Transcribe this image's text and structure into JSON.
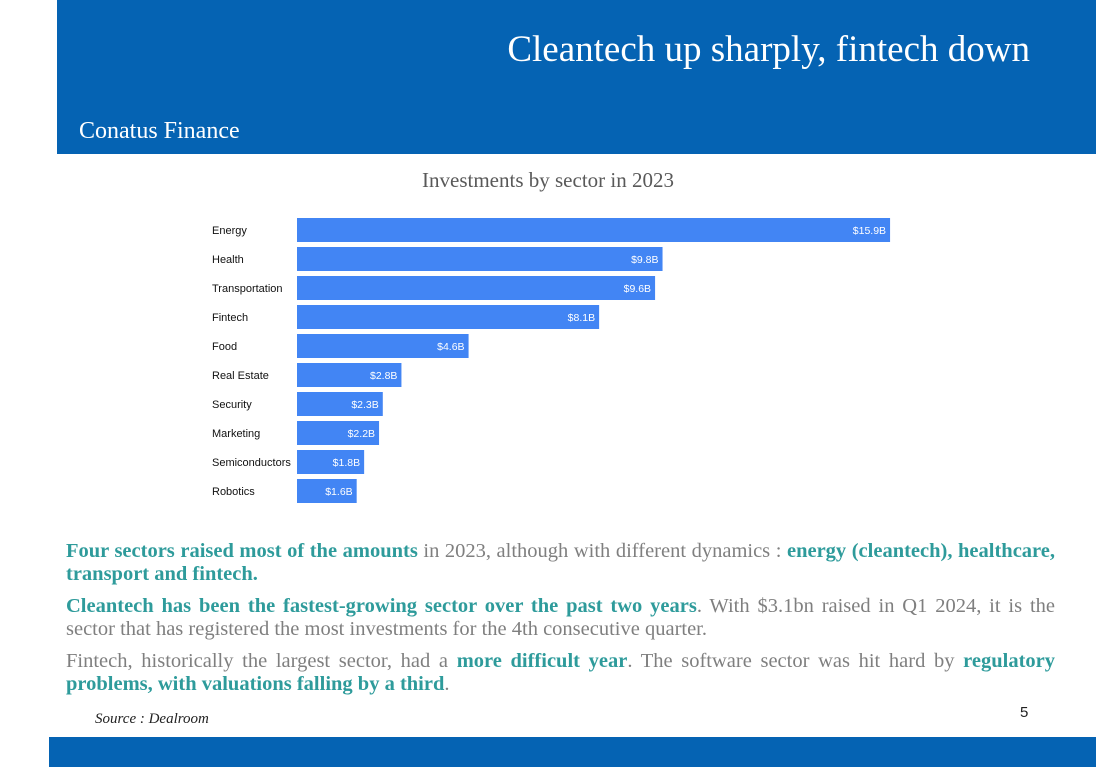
{
  "header": {
    "title": "Cleantech up sharply, fintech down",
    "company": "Conatus Finance",
    "color": "#0563b3"
  },
  "chart_data": {
    "type": "bar",
    "orientation": "horizontal",
    "title": "Investments by sector in 2023",
    "categories": [
      "Energy",
      "Health",
      "Transportation",
      "Fintech",
      "Food",
      "Real Estate",
      "Security",
      "Marketing",
      "Semiconductors",
      "Robotics"
    ],
    "values": [
      15.9,
      9.8,
      9.6,
      8.1,
      4.6,
      2.8,
      2.3,
      2.2,
      1.8,
      1.6
    ],
    "value_labels": [
      "$15.9B",
      "$9.8B",
      "$9.6B",
      "$8.1B",
      "$4.6B",
      "$2.8B",
      "$2.3B",
      "$2.2B",
      "$1.8B",
      "$1.6B"
    ],
    "unit": "$B",
    "bar_color": "#4285f4",
    "grid": false,
    "legend": "none"
  },
  "body": {
    "p1": [
      {
        "text": "Four sectors raised most of the amounts",
        "hl": true
      },
      {
        "text": " in 2023, although with different dynamics : ",
        "hl": false
      },
      {
        "text": "energy (cleantech), healthcare, transport and fintech.",
        "hl": true
      }
    ],
    "p2": [
      {
        "text": "Cleantech has been the fastest-growing sector over the past two years",
        "hl": true
      },
      {
        "text": ". With $3.1bn raised in Q1 2024, it is the sector that has registered the most investments for the 4th consecutive quarter.",
        "hl": false
      }
    ],
    "p3": [
      {
        "text": "Fintech, historically the largest sector, had a ",
        "hl": false
      },
      {
        "text": "more difficult year",
        "hl": true
      },
      {
        "text": ". The software sector was hit hard by ",
        "hl": false
      },
      {
        "text": "regulatory problems, with valuations falling by a third",
        "hl": true
      },
      {
        "text": ".",
        "hl": false
      }
    ],
    "highlight_color": "#2e9b9b"
  },
  "source": "Source : Dealroom",
  "page_number": "5"
}
